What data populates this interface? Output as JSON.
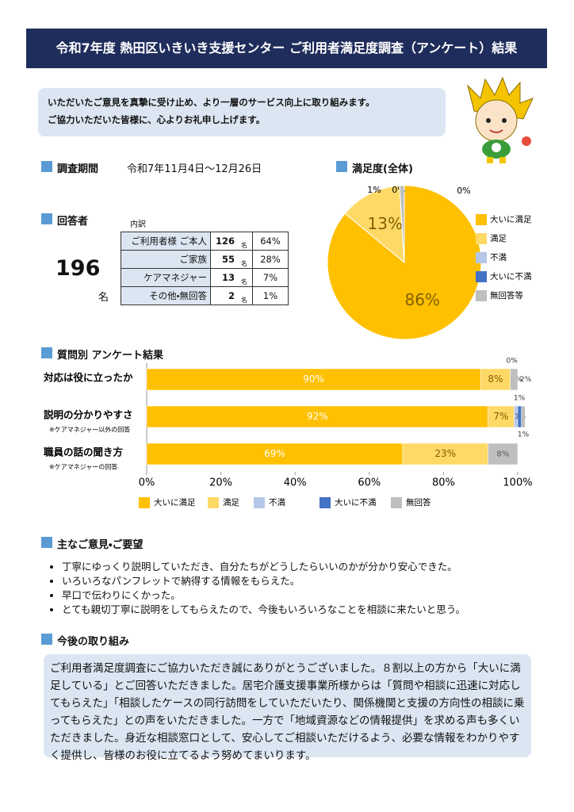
{
  "header": {
    "title": "令和7年度 熱田区いきいき支援センター ご利用者満足度調査（アンケート）結果"
  },
  "intro": [
    "いただいたご意見を真摯に受け止め、より一層のサービス向上に取り組みます。",
    "ご協力いただいた皆様に、心よりお礼申し上げます。"
  ],
  "period": {
    "label": "調査期間",
    "value": "令和7年11月4日～12月26日"
  },
  "respondents": {
    "label": "回答者",
    "total": 196,
    "unit": "名",
    "breakdown_label": "内訳",
    "rows": [
      [
        "ご利用者様 ご本人",
        126,
        "名",
        "64%"
      ],
      [
        "ご家族",
        55,
        "名",
        "28%"
      ],
      [
        "ケアマネジャー",
        13,
        "名",
        "7%"
      ],
      [
        "その他・無回答",
        2,
        "名",
        "1%"
      ]
    ]
  },
  "chart_data": [
    {
      "type": "pie",
      "title": "満足度(全体)",
      "categories": [
        "大いに満足",
        "満足",
        "不満",
        "大いに不満",
        "無回答等"
      ],
      "values": [
        86,
        13,
        0,
        0,
        1
      ],
      "value_labels": [
        "86%",
        "13%",
        "0%",
        "0%",
        "1%"
      ],
      "colors": [
        "#ffc000",
        "#ffd966",
        "#b4c7e7",
        "#4472c4",
        "#bfbfbf"
      ]
    },
    {
      "type": "stacked-bar",
      "orientation": "horizontal",
      "title": "質問別 アンケート結果",
      "categories": [
        "対応は役に立ったか",
        "説明の分かりやすさ",
        "職員の話の聞き方"
      ],
      "category_notes": [
        null,
        "※ケアマネジャー以外の回答",
        "※ケアマネジャーの回答"
      ],
      "series": [
        {
          "name": "大いに満足",
          "color": "#ffc000",
          "values": [
            90,
            92,
            69
          ],
          "value_labels": [
            "90%",
            "92%",
            "69%"
          ]
        },
        {
          "name": "満足",
          "color": "#ffd966",
          "values": [
            8,
            7,
            23
          ],
          "value_labels": [
            "8%",
            "7%",
            "23%"
          ]
        },
        {
          "name": "不満",
          "color": "#b4c7e7",
          "values": [
            0,
            1,
            0
          ],
          "value_labels": [
            "0%",
            "1%",
            "0%"
          ]
        },
        {
          "name": "大いに不満",
          "color": "#4472c4",
          "values": [
            0,
            1,
            0
          ],
          "value_labels": [
            "0%",
            "1%",
            null
          ]
        },
        {
          "name": "無回答",
          "color": "#bfbfbf",
          "values": [
            2,
            1,
            8
          ],
          "value_labels": [
            "2%",
            "1%",
            "8%"
          ]
        }
      ],
      "xlim": [
        0,
        100
      ],
      "xticks": [
        {
          "value": 0,
          "label": "0%"
        },
        {
          "value": 20,
          "label": "20%"
        },
        {
          "value": 40,
          "label": "40%"
        },
        {
          "value": 60,
          "label": "60%"
        },
        {
          "value": 80,
          "label": "80%"
        },
        {
          "value": 100,
          "label": "100%"
        }
      ]
    }
  ],
  "comments": {
    "title": "主なご意見・ご要望",
    "items": [
      "丁寧にゆっくり説明していただき、自分たちがどうしたらいいのかが分かり安心できた。",
      "いろいろなパンフレットで納得する情報をもらえた。",
      "早口で伝わりにくかった。",
      "とても親切丁寧に説明をしてもらえたので、今後もいろいろなことを相談に来たいと思う。"
    ]
  },
  "future": {
    "title": "今後の取り組み",
    "text": "ご利用者満足度調査にご協力いただき誠にありがとうございました。８割以上の方から「大いに満足している」とご回答いただきました。居宅介護支援事業所様からは「質問や相談に迅速に対応してもらえた」「相談したケースの同行訪問をしていただいたり、関係機関と支援の方向性の相談に乗ってもらえた」との声をいただきました。一方で「地域資源などの情報提供」を求める声も多くいただきました。身近な相談窓口として、安心してご相談いただけるよう、必要な情報をわかりやすく提供し、皆様のお役に立てるよう努めてまいります。"
  }
}
